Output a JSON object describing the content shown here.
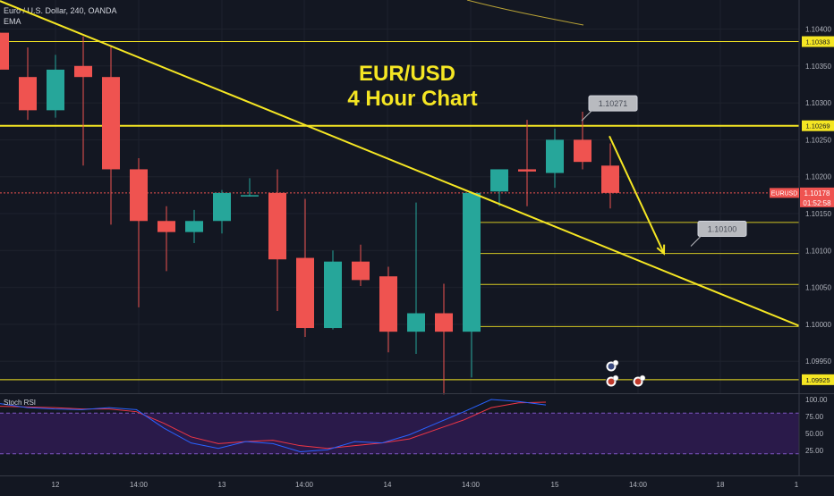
{
  "header": {
    "symbol_line": "Euro / U.S. Dollar, 240, OANDA",
    "indicator": "EMA"
  },
  "chart_data": {
    "type": "candlestick",
    "title": "EUR/USD\n4 Hour Chart",
    "title_lines": [
      "EUR/USD",
      "4 Hour Chart"
    ],
    "ylim": [
      1.09895,
      1.10435
    ],
    "price_ticks": [
      "1.10400",
      "1.10350",
      "1.10300",
      "1.10250",
      "1.10200",
      "1.10150",
      "1.10100",
      "1.10050",
      "1.10000",
      "1.09950"
    ],
    "time_labels": [
      "12",
      "14:00",
      "13",
      "14:00",
      "14",
      "14:00",
      "15",
      "14:00",
      "18",
      "1"
    ],
    "candles": [
      {
        "o": 1.10395,
        "h": 1.10395,
        "l": 1.10345,
        "c": 1.10345
      },
      {
        "o": 1.10335,
        "h": 1.10375,
        "l": 1.10277,
        "c": 1.1029
      },
      {
        "o": 1.1029,
        "h": 1.10365,
        "l": 1.1028,
        "c": 1.10345
      },
      {
        "o": 1.1035,
        "h": 1.1039,
        "l": 1.10215,
        "c": 1.10335
      },
      {
        "o": 1.10335,
        "h": 1.10378,
        "l": 1.10135,
        "c": 1.1021
      },
      {
        "o": 1.1021,
        "h": 1.10225,
        "l": 1.10023,
        "c": 1.1014
      },
      {
        "o": 1.1014,
        "h": 1.1016,
        "l": 1.10072,
        "c": 1.10125
      },
      {
        "o": 1.10125,
        "h": 1.10155,
        "l": 1.1011,
        "c": 1.1014
      },
      {
        "o": 1.1014,
        "h": 1.10182,
        "l": 1.10123,
        "c": 1.10178
      },
      {
        "o": 1.10175,
        "h": 1.10198,
        "l": 1.10173,
        "c": 1.10175
      },
      {
        "o": 1.10178,
        "h": 1.1021,
        "l": 1.10018,
        "c": 1.10088
      },
      {
        "o": 1.1009,
        "h": 1.1017,
        "l": 1.09983,
        "c": 1.09995
      },
      {
        "o": 1.09995,
        "h": 1.101,
        "l": 1.09993,
        "c": 1.10085
      },
      {
        "o": 1.10085,
        "h": 1.10108,
        "l": 1.10052,
        "c": 1.1006
      },
      {
        "o": 1.10065,
        "h": 1.10078,
        "l": 1.09962,
        "c": 1.0999
      },
      {
        "o": 1.0999,
        "h": 1.10165,
        "l": 1.0996,
        "c": 1.10015
      },
      {
        "o": 1.10015,
        "h": 1.10055,
        "l": 1.09905,
        "c": 1.0999
      },
      {
        "o": 1.0999,
        "h": 1.1018,
        "l": 1.09928,
        "c": 1.10178
      },
      {
        "o": 1.1018,
        "h": 1.1021,
        "l": 1.1016,
        "c": 1.1021
      },
      {
        "o": 1.1021,
        "h": 1.10277,
        "l": 1.1016,
        "c": 1.10207
      },
      {
        "o": 1.10205,
        "h": 1.10265,
        "l": 1.10185,
        "c": 1.1025
      },
      {
        "o": 1.1025,
        "h": 1.10288,
        "l": 1.1021,
        "c": 1.1022
      },
      {
        "o": 1.10215,
        "h": 1.10245,
        "l": 1.10157,
        "c": 1.10178
      }
    ],
    "levels": [
      {
        "price": 1.10383,
        "label": "1.10383"
      },
      {
        "price": 1.10269,
        "label": "1.10269"
      },
      {
        "price": 1.09925,
        "label": "1.09925"
      }
    ],
    "fib_levels": [
      1.10138,
      1.10096,
      1.10054,
      1.09997
    ],
    "current_price": {
      "label": "EURUSD",
      "value": "1.10178",
      "countdown": "01:52:58",
      "price": 1.10178
    },
    "callouts": [
      {
        "text": "1.10271",
        "price": 1.103
      },
      {
        "text": "1.10100",
        "price": 1.1013
      }
    ],
    "trendline": {
      "from_price": 1.10438,
      "to_price": 1.09998
    },
    "forecast_arrow": {
      "from_price": 1.10255,
      "to_price": 1.10096
    },
    "colors": {
      "background": "#131722",
      "up": "#26a69a",
      "down": "#ef5350",
      "level": "#f5e623",
      "rsi_k": "#2962ff",
      "rsi_d": "#f23645",
      "rsi_band": "#2a1a4a"
    },
    "stoch_rsi": {
      "label": "Stoch RSI",
      "ticks": [
        "100.00",
        "75.00",
        "50.00",
        "25.00"
      ],
      "band": [
        20,
        80
      ],
      "k": [
        94,
        88,
        86,
        85,
        88,
        85,
        58,
        36,
        28,
        38,
        35,
        23,
        26,
        38,
        36,
        48,
        65,
        82,
        100,
        97,
        92
      ],
      "d": [
        90,
        89,
        88,
        86,
        86,
        82,
        65,
        45,
        35,
        38,
        40,
        32,
        28,
        32,
        36,
        42,
        56,
        70,
        88,
        95,
        96
      ]
    }
  }
}
